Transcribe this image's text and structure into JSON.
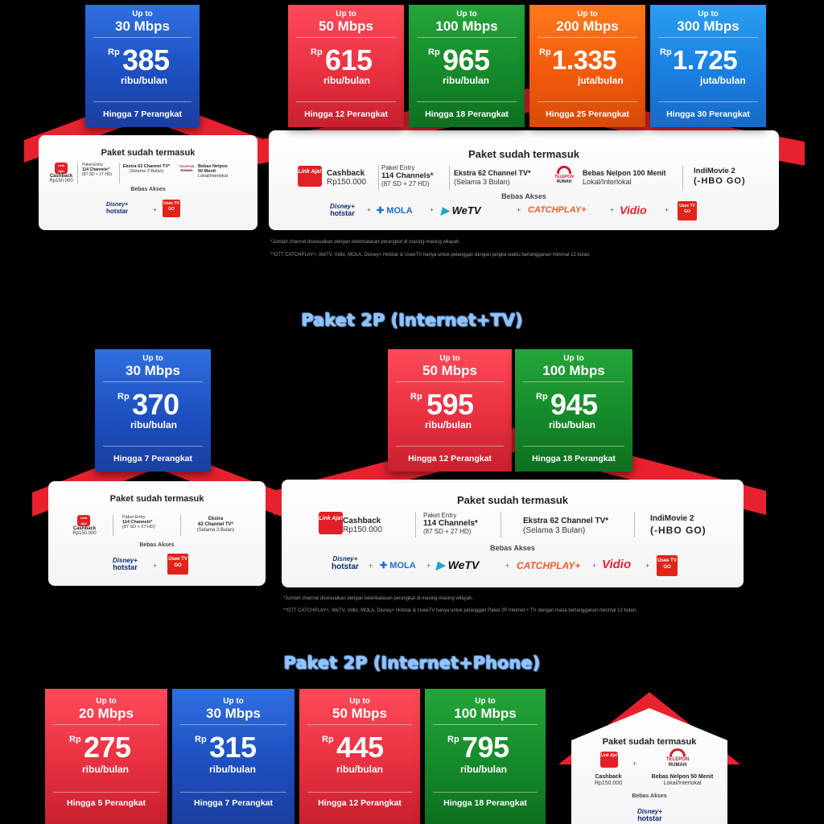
{
  "common": {
    "upto": "Up to",
    "rp": "Rp",
    "ribu": "ribu/bulan",
    "juta": "juta/bulan",
    "included": "Paket sudah termasuk",
    "access": "Bebas Akses",
    "plus": "+"
  },
  "section1": {
    "cards": [
      {
        "speed": "30 Mbps",
        "price": "385",
        "unit": "ribu/bulan",
        "devices": "Hingga 7 Perangkat"
      },
      {
        "speed": "50 Mbps",
        "price": "615",
        "unit": "ribu/bulan",
        "devices": "Hingga 12 Perangkat"
      },
      {
        "speed": "100 Mbps",
        "price": "965",
        "unit": "ribu/bulan",
        "devices": "Hingga 18 Perangkat"
      },
      {
        "speed": "200 Mbps",
        "price": "1.335",
        "unit": "juta/bulan",
        "devices": "Hingga 25 Perangkat"
      },
      {
        "speed": "300 Mbps",
        "price": "1.725",
        "unit": "juta/bulan",
        "devices": "Hingga 30 Perangkat"
      }
    ],
    "small_items": {
      "cashback": "Cashback",
      "cashback_val": "Rp150.000",
      "entry": "Paket Entry",
      "channels": "114 Channels*",
      "channels_sub": "(87 SD + 27 HD)",
      "extra": "Ekstra",
      "extra2": "62 Channel TV*",
      "extra_sub": "(Selama 3 Bulan)",
      "phone": "Bebas Nelpon",
      "phone2": "50 Menit",
      "phone_sub": "Lokal/Interlokal"
    },
    "big_items": {
      "cashback": "Cashback",
      "cashback_val": "Rp150.000",
      "entry": "Paket Entry",
      "channels": "114 Channels*",
      "channels_sub": "(87 SD + 27 HD)",
      "extra": "Ekstra 62 Channel TV*",
      "extra_sub": "(Selama 3 Bulan)",
      "phone": "Bebas Nelpon 100 Menit",
      "phone_sub": "Lokal/Interlokal",
      "indimovie": "IndiMovie 2",
      "hbo": "(-HBO GO)"
    },
    "footnotes": [
      "*Jumlah channel disesuaikan dengan keterbatasan perangkat di masing-masing wilayah.",
      "**OTT CATCHPLAY+, WeTV, Vidio, MOLA, Disney+ Hotstar & UseeTV hanya untuk pelanggan dengan jangka waktu berlangganan minimal 12 bulan."
    ]
  },
  "section2": {
    "title": "Paket 2P (Internet+TV)",
    "cards": [
      {
        "speed": "30 Mbps",
        "price": "370",
        "unit": "ribu/bulan",
        "devices": "Hingga 7 Perangkat"
      },
      {
        "speed": "50 Mbps",
        "price": "595",
        "unit": "ribu/bulan",
        "devices": "Hingga 12 Perangkat"
      },
      {
        "speed": "100 Mbps",
        "price": "945",
        "unit": "ribu/bulan",
        "devices": "Hingga 18 Perangkat"
      }
    ],
    "small_items": {
      "cashback": "Cashback",
      "cashback_val": "Rp150.000",
      "entry": "Paket Entry",
      "channels": "114 Channels*",
      "channels_sub": "(87 SD + 27 HD)",
      "extra": "Ekstra",
      "extra2": "62 Channel TV*",
      "extra_sub": "(Selama 3 Bulan)"
    },
    "big_items": {
      "cashback": "Cashback",
      "cashback_val": "Rp150.000",
      "entry": "Paket Entry",
      "channels": "114 Channels*",
      "channels_sub": "(87 SD + 27 HD)",
      "extra": "Ekstra 62 Channel TV*",
      "extra_sub": "(Selama 3 Bulan)",
      "indimovie": "IndiMovie 2",
      "hbo": "(-HBO GO)"
    },
    "footnotes": [
      "*Jumlah channel disesuaikan dengan keterbatasan perangkat di masing-masing wilayah.",
      "**OTT CATCHPLAY+, WeTV, Vidio, MOLA, Disney+ Hotstar & UseeTV hanya untuk pelanggan Paket 2P Internet + TV dengan masa berlangganan minimal 12 bulan."
    ]
  },
  "section3": {
    "title": "Paket 2P (Internet+Phone)",
    "cards": [
      {
        "speed": "20 Mbps",
        "price": "275",
        "unit": "ribu/bulan",
        "devices": "Hingga 5 Perangkat"
      },
      {
        "speed": "30 Mbps",
        "price": "315",
        "unit": "ribu/bulan",
        "devices": "Hingga 7 Perangkat"
      },
      {
        "speed": "50 Mbps",
        "price": "445",
        "unit": "ribu/bulan",
        "devices": "Hingga 12 Perangkat"
      },
      {
        "speed": "100 Mbps",
        "price": "795",
        "unit": "ribu/bulan",
        "devices": "Hingga 18 Perangkat"
      }
    ],
    "items": {
      "cashback": "Cashback",
      "cashback_val": "Rp150.000",
      "phone": "Bebas Nelpon 50 Menit",
      "phone_sub": "Lokal/Interlokal"
    }
  },
  "logos": {
    "linkaja": "Link Aja!",
    "telp1": "TELEPON",
    "telp2": "RUMAH",
    "useetv": "Usee TV GO",
    "disney": "Disney+",
    "hotstar": "hotstar",
    "mola": "MOLA",
    "wetv": "WeTV",
    "catchplay": "CATCHPLAY+",
    "vidio": "Vidio"
  },
  "colors": {
    "roof": "#e8212f",
    "blue": "#1d4fc0",
    "red": "#e83040",
    "green": "#148a2a",
    "orange": "#f25a0c",
    "light_blue": "#1a7fe0",
    "title_blue": "#8ec5ff"
  }
}
